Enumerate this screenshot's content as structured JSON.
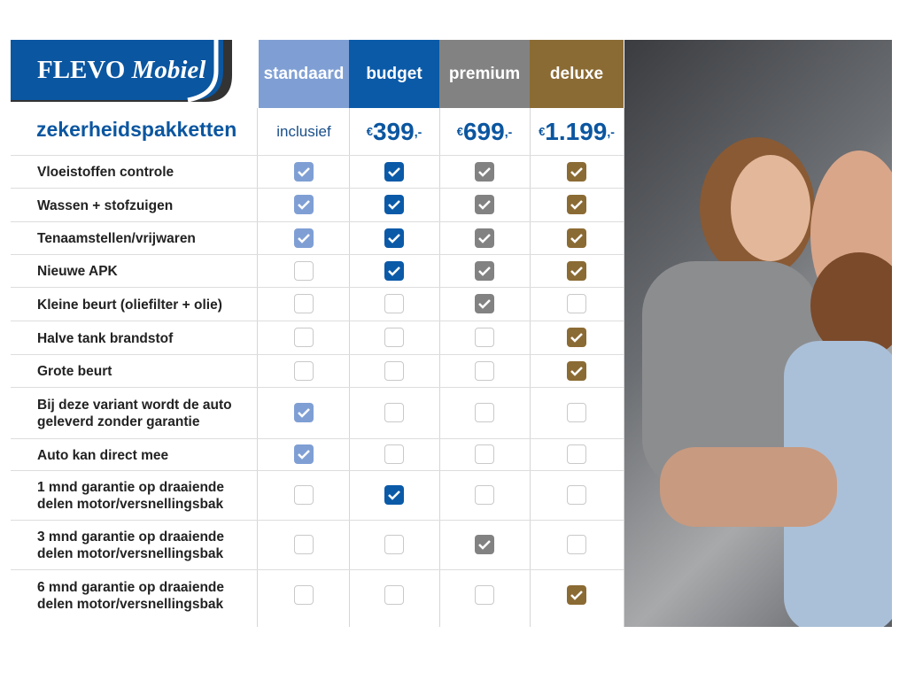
{
  "logo": {
    "brand": "FLEVO",
    "sub": "Mobiel"
  },
  "title": "zekerheidspakketten",
  "colors": {
    "standaard": "#7f9fd4",
    "budget": "#0b5aa8",
    "premium": "#828282",
    "deluxe": "#8b6b34",
    "title": "#0b56a0"
  },
  "packages": [
    {
      "name": "standaard",
      "price": "inclusief"
    },
    {
      "name": "budget",
      "currency": "€",
      "price": "399",
      "suffix": ",-"
    },
    {
      "name": "premium",
      "currency": "€",
      "price": "699",
      "suffix": ",-"
    },
    {
      "name": "deluxe",
      "currency": "€",
      "price": "1.199",
      "suffix": ",-"
    }
  ],
  "rows": [
    {
      "label": "Vloeistoffen controle",
      "checks": [
        true,
        true,
        true,
        true
      ]
    },
    {
      "label": "Wassen + stofzuigen",
      "checks": [
        true,
        true,
        true,
        true
      ]
    },
    {
      "label": "Tenaamstellen/vrijwaren",
      "checks": [
        true,
        true,
        true,
        true
      ]
    },
    {
      "label": "Nieuwe APK",
      "checks": [
        false,
        true,
        true,
        true
      ]
    },
    {
      "label": "Kleine beurt (oliefilter + olie)",
      "checks": [
        false,
        false,
        true,
        false
      ]
    },
    {
      "label": "Halve tank brandstof",
      "checks": [
        false,
        false,
        false,
        true
      ]
    },
    {
      "label": "Grote beurt",
      "checks": [
        false,
        false,
        false,
        true
      ]
    },
    {
      "label": "Bij deze variant wordt de auto geleverd zonder garantie",
      "checks": [
        true,
        false,
        false,
        false
      ]
    },
    {
      "label": "Auto kan direct mee",
      "checks": [
        true,
        false,
        false,
        false
      ]
    },
    {
      "label": "1 mnd garantie op draaiende delen motor/versnellingsbak",
      "checks": [
        false,
        true,
        false,
        false
      ]
    },
    {
      "label": "3 mnd garantie op draaiende delen motor/versnellingsbak",
      "checks": [
        false,
        false,
        true,
        false
      ]
    },
    {
      "label": "6 mnd garantie op draaiende delen motor/versnellingsbak",
      "checks": [
        false,
        false,
        false,
        true
      ]
    }
  ]
}
